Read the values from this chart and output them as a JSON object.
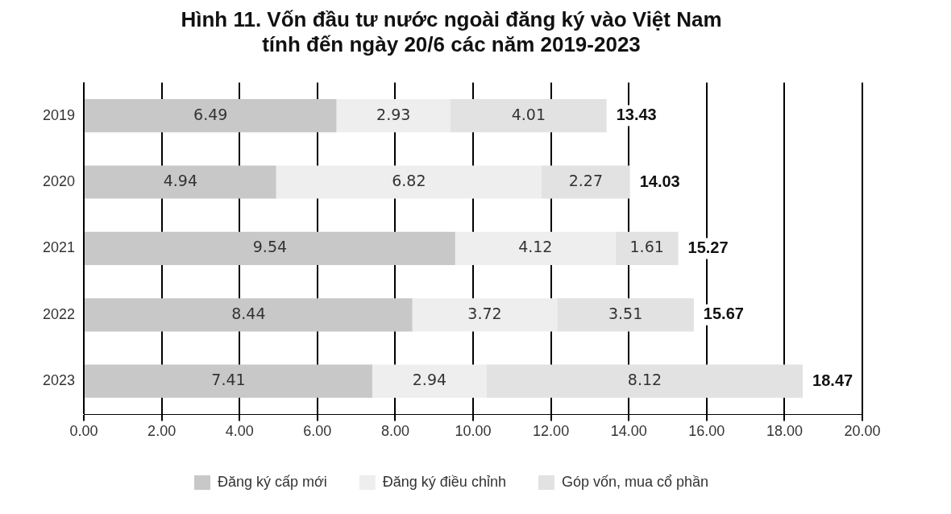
{
  "chart_data": {
    "type": "bar",
    "orientation": "horizontal",
    "stacked": true,
    "title": "Hình 11. Vốn đầu tư nước ngoài đăng ký vào Việt Nam\ntính đến ngày 20/6 các năm 2019-2023",
    "categories": [
      "2019",
      "2020",
      "2021",
      "2022",
      "2023"
    ],
    "series": [
      {
        "name": "Đăng ký cấp mới",
        "color": "#c8c8c8",
        "values": [
          6.49,
          4.94,
          9.54,
          8.44,
          7.41
        ]
      },
      {
        "name": "Đăng ký điều chỉnh",
        "color": "#eeeeee",
        "values": [
          2.93,
          6.82,
          4.12,
          3.72,
          2.94
        ]
      },
      {
        "name": "Góp vốn, mua cổ phần",
        "color": "#e2e2e2",
        "values": [
          4.01,
          2.27,
          1.61,
          3.51,
          8.12
        ]
      }
    ],
    "totals": [
      "13.43",
      "14.03",
      "15.27",
      "15.67",
      "18.47"
    ],
    "xlim": [
      0,
      20
    ],
    "xticks": [
      {
        "value": 0,
        "label": "0.00"
      },
      {
        "value": 2,
        "label": "2.00"
      },
      {
        "value": 4,
        "label": "4.00"
      },
      {
        "value": 6,
        "label": "6.00"
      },
      {
        "value": 8,
        "label": "8.00"
      },
      {
        "value": 10,
        "label": "10.00"
      },
      {
        "value": 12,
        "label": "12.00"
      },
      {
        "value": 14,
        "label": "14.00"
      },
      {
        "value": 16,
        "label": "16.00"
      },
      {
        "value": 18,
        "label": "18.00"
      },
      {
        "value": 20,
        "label": "20.00"
      }
    ],
    "grid": "x",
    "legend": "bottom",
    "data_labels": true
  }
}
